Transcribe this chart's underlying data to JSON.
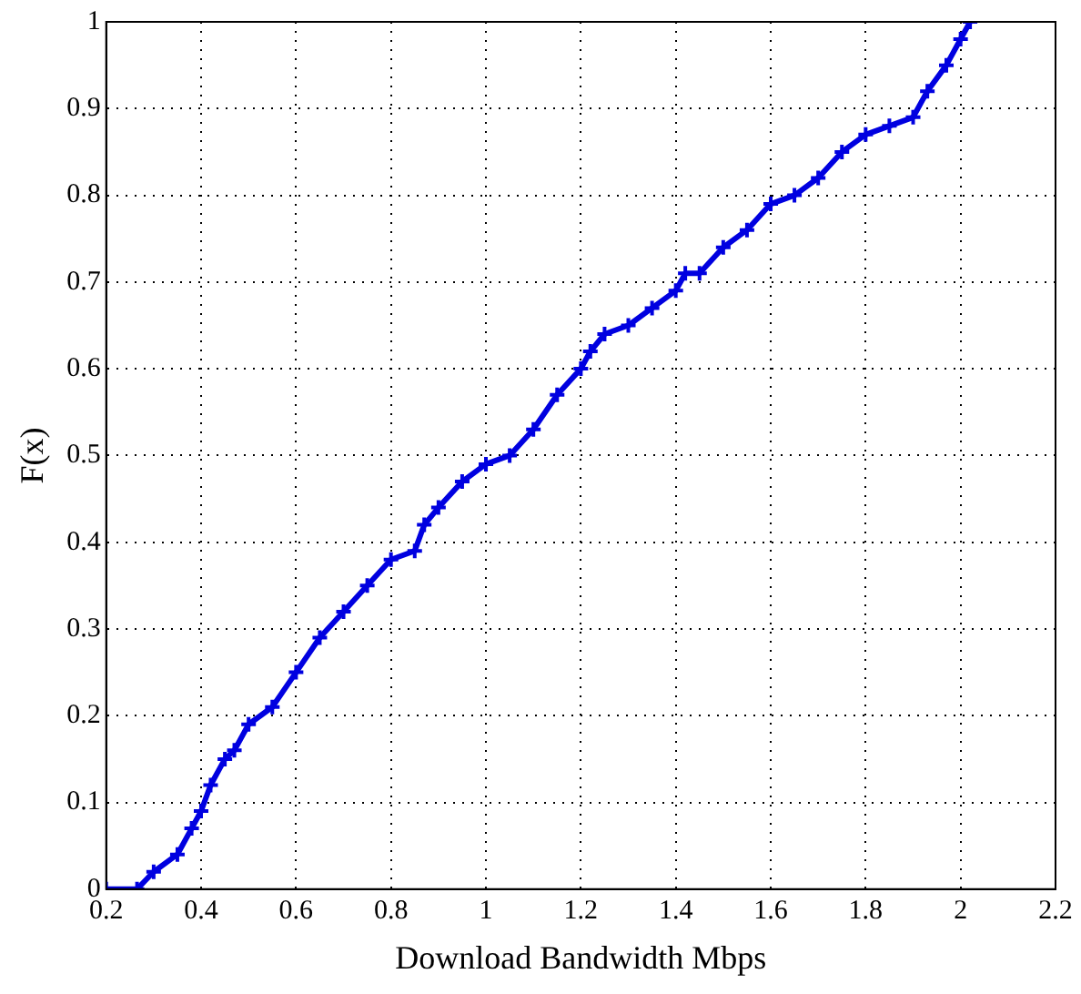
{
  "chart_data": {
    "type": "line",
    "xlabel": "Download Bandwidth Mbps",
    "ylabel": "F(x)",
    "x": [
      0.2,
      0.265,
      0.3,
      0.35,
      0.38,
      0.4,
      0.42,
      0.45,
      0.47,
      0.5,
      0.55,
      0.6,
      0.65,
      0.7,
      0.75,
      0.8,
      0.85,
      0.87,
      0.9,
      0.95,
      1.0,
      1.05,
      1.1,
      1.15,
      1.2,
      1.22,
      1.25,
      1.3,
      1.35,
      1.4,
      1.42,
      1.45,
      1.5,
      1.55,
      1.6,
      1.65,
      1.7,
      1.75,
      1.8,
      1.85,
      1.9,
      1.93,
      1.97,
      2.0,
      2.02
    ],
    "series": [
      {
        "color": "#0000e0",
        "values": [
          0,
          0,
          0.02,
          0.04,
          0.07,
          0.09,
          0.12,
          0.15,
          0.16,
          0.19,
          0.21,
          0.25,
          0.29,
          0.32,
          0.35,
          0.38,
          0.39,
          0.42,
          0.44,
          0.47,
          0.49,
          0.5,
          0.53,
          0.57,
          0.6,
          0.62,
          0.64,
          0.65,
          0.67,
          0.69,
          0.71,
          0.71,
          0.74,
          0.76,
          0.79,
          0.8,
          0.82,
          0.85,
          0.87,
          0.88,
          0.89,
          0.92,
          0.95,
          0.98,
          1.0
        ]
      }
    ],
    "xlim": [
      0.2,
      2.2
    ],
    "xticks": [
      0.2,
      0.4,
      0.6,
      0.8,
      1,
      1.2,
      1.4,
      1.6,
      1.8,
      2,
      2.2
    ],
    "ylim": [
      0,
      1
    ],
    "yticks": [
      0,
      0.1,
      0.2,
      0.3,
      0.4,
      0.5,
      0.6,
      0.7,
      0.8,
      0.9,
      1
    ],
    "grid": true,
    "legend": false,
    "marker": "cross",
    "line_style": "solid"
  }
}
